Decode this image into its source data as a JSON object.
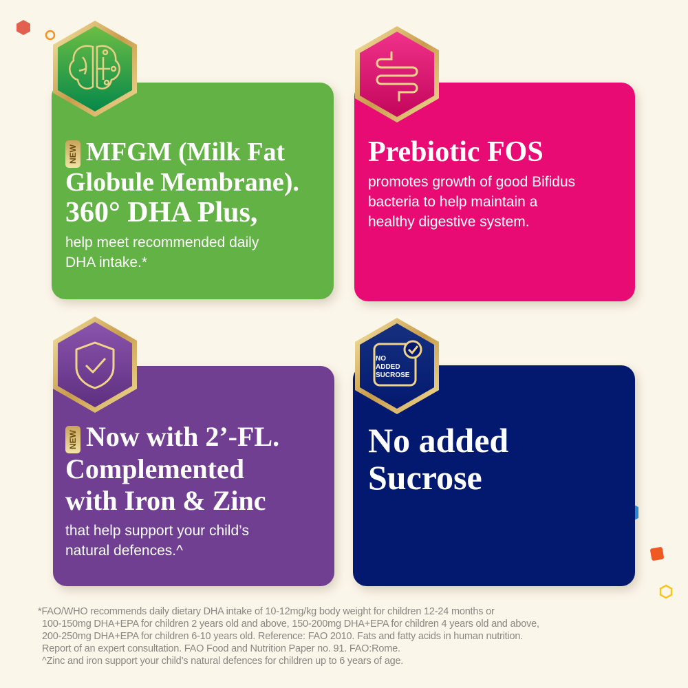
{
  "colors": {
    "green": "#62b245",
    "pink": "#e90b74",
    "purple": "#703f92",
    "navy": "#03196f",
    "gold": "#d9bc6a"
  },
  "cards": [
    {
      "icon": "brain-circuit-icon",
      "badge": "NEW",
      "title_line1": "MFGM (Milk Fat",
      "title_line2": "Globule Membrane).",
      "title_line3": "360° DHA Plus,",
      "body": "help meet recommended daily DHA intake.*"
    },
    {
      "icon": "intestine-icon",
      "title": "Prebiotic FOS",
      "body": "promotes growth of good Bifidus bacteria to help maintain a healthy digestive system."
    },
    {
      "icon": "shield-check-icon",
      "badge": "NEW",
      "title_line1": "Now with 2’-FL.",
      "title_line2": "Complemented",
      "title_line3": "with Iron & Zinc",
      "body": "that help support your child’s natural defences.^"
    },
    {
      "icon": "no-added-sucrose-icon",
      "icon_text": "NO ADDED SUCROSE",
      "title_line1": "No added",
      "title_line2": "Sucrose"
    }
  ],
  "footnotes": [
    "*FAO/WHO recommends daily dietary DHA intake of 10-12mg/kg body weight for children 12-24 months or",
    "100-150mg DHA+EPA for children 2 years old and above, 150-200mg DHA+EPA for children 4 years old and above,",
    "200-250mg DHA+EPA for children 6-10 years old. Reference: FAO 2010. Fats and fatty acids in human nutrition.",
    "Report of an expert consultation. FAO Food and Nutrition Paper no. 91. FAO:Rome.",
    "^Zinc and iron support your child’s natural defences for children up to 6 years of age."
  ]
}
